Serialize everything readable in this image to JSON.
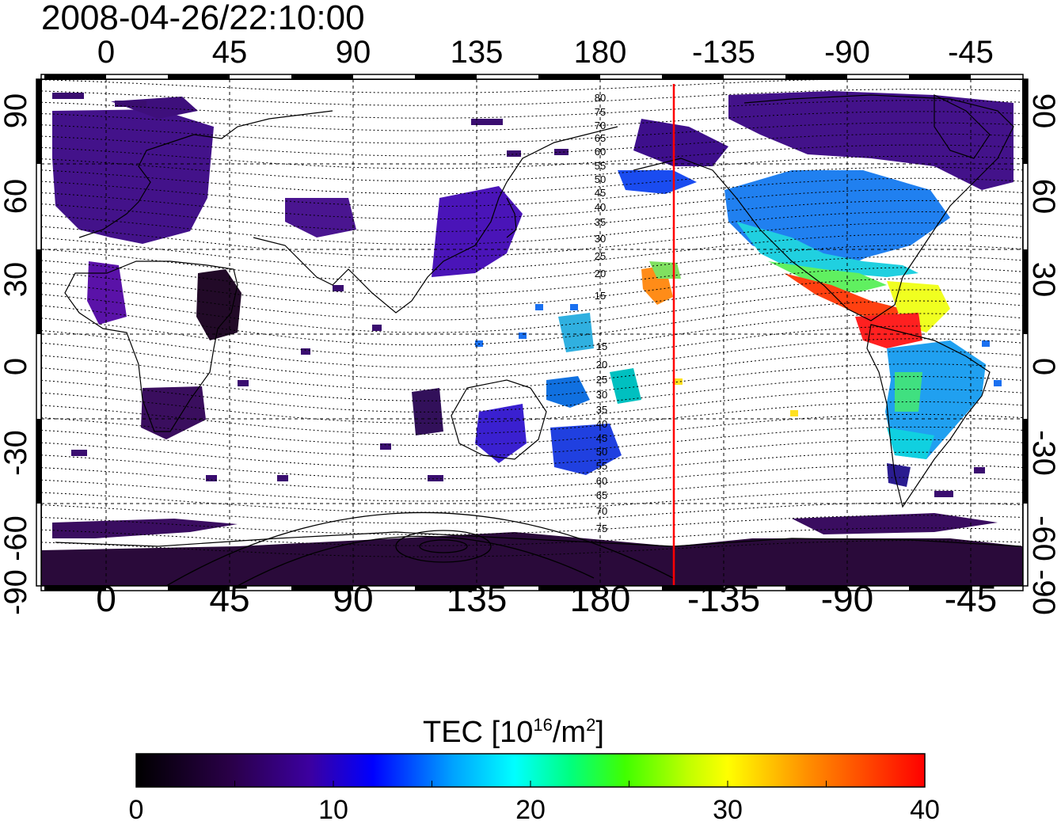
{
  "title": "2008-04-26/22:10:00",
  "map": {
    "lon_ticks": [
      "0",
      "45",
      "90",
      "135",
      "180",
      "-135",
      "-90",
      "-45"
    ],
    "lat_ticks": [
      "90",
      "60",
      "30",
      "0",
      "-30",
      "-60",
      "-90"
    ],
    "grid": true,
    "colors": {
      "frame": "#000000",
      "grid": "#000000",
      "coastline": "#000000",
      "terminator_line": "#ff0000"
    },
    "north_contour_labels": [
      "80",
      "75",
      "70",
      "65",
      "60",
      "55",
      "50",
      "45",
      "40",
      "35",
      "30",
      "25",
      "20",
      "15"
    ],
    "south_contour_labels": [
      "15",
      "20",
      "25",
      "30",
      "35",
      "40",
      "45",
      "50",
      "55",
      "60",
      "65",
      "70",
      "75"
    ]
  },
  "colorbar": {
    "label_main": "TEC  [10",
    "label_exp": "16",
    "label_unit": "/m",
    "label_unit_exp": "2",
    "label_close": "]",
    "ticks": [
      "0",
      "10",
      "20",
      "30",
      "40"
    ],
    "range": [
      0,
      40
    ],
    "colormap": [
      "#000000",
      "#2a0048",
      "#3c00a0",
      "#0000ff",
      "#00a0ff",
      "#00ffff",
      "#00ff80",
      "#40ff00",
      "#c0ff00",
      "#ffff00",
      "#ff9000",
      "#ff0000"
    ]
  }
}
